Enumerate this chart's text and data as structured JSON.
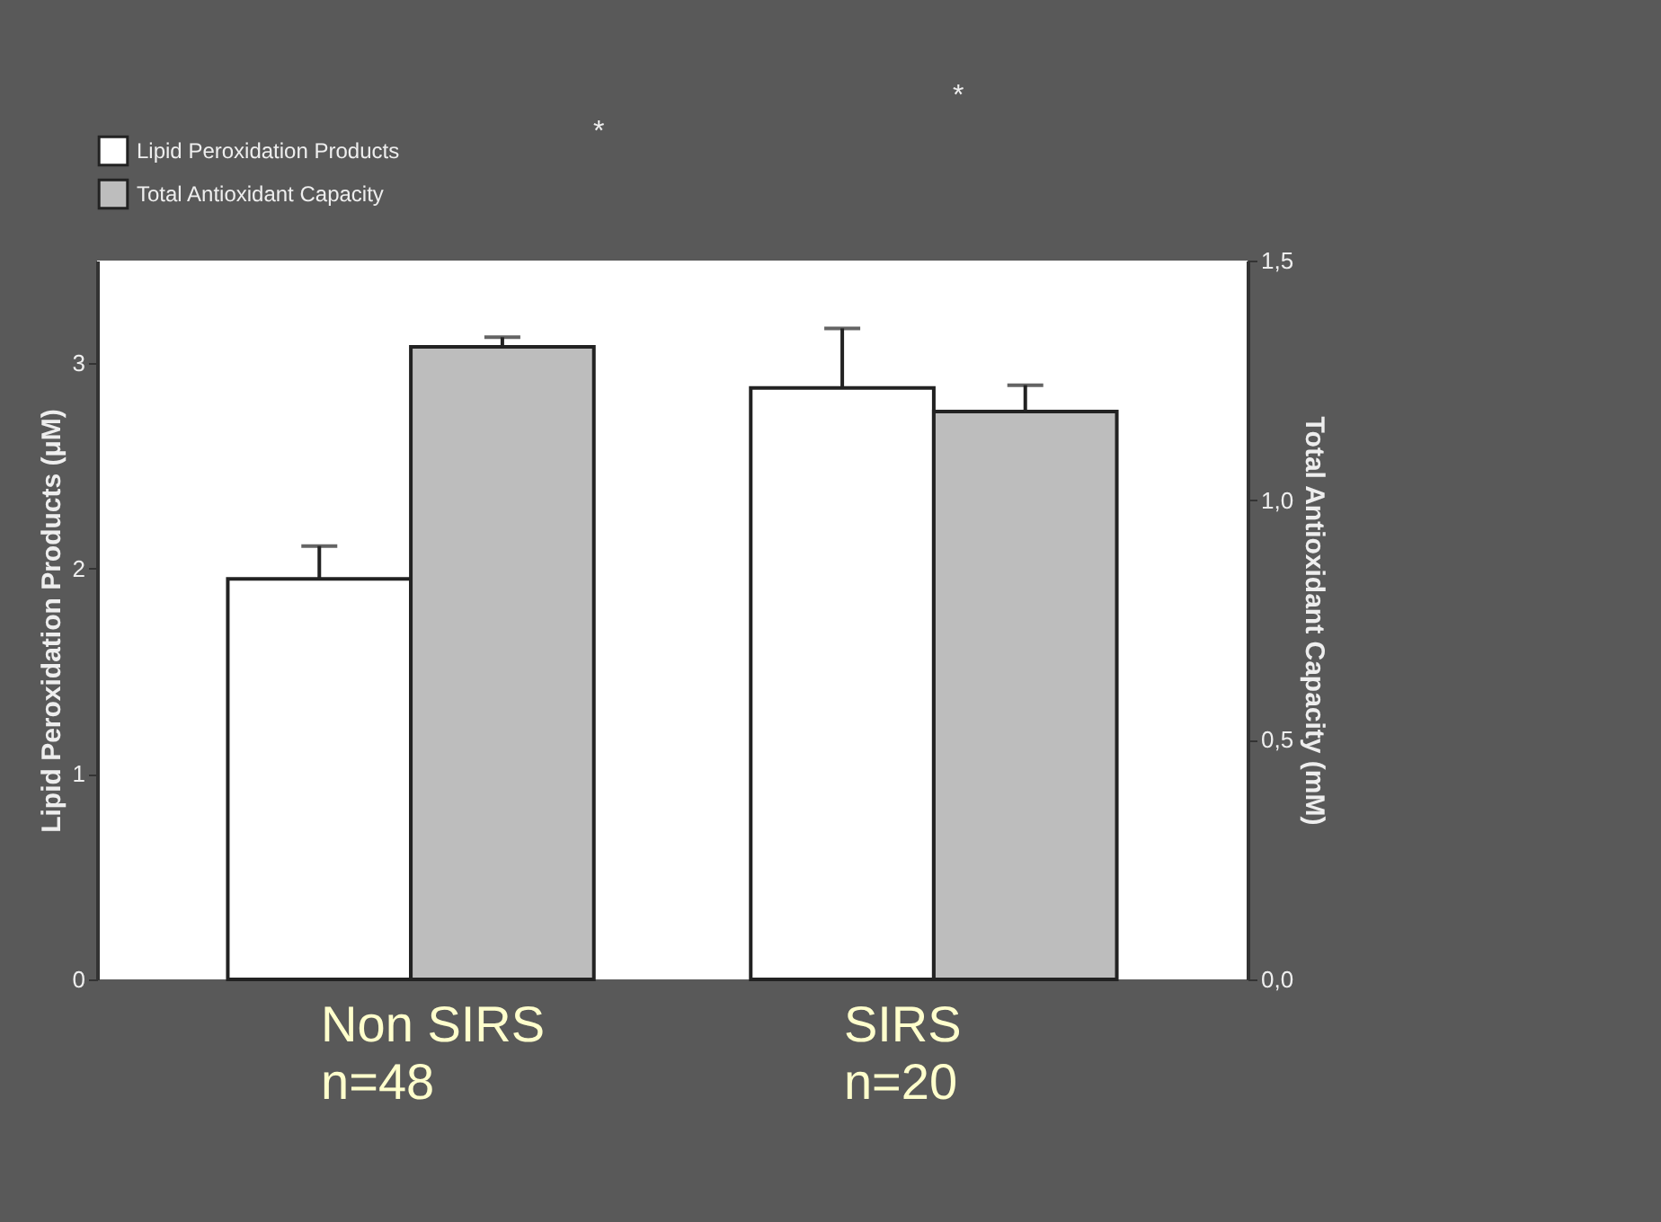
{
  "chart_data": {
    "type": "bar",
    "categories": [
      "Non SIRS\nn=48",
      "SIRS\nn=20"
    ],
    "series": [
      {
        "name": "Lipid Peroxidation Products",
        "color": "#ffffff",
        "values": [
          1.95,
          2.88
        ],
        "errors": [
          [
            1.95,
            2.11
          ],
          [
            2.88,
            3.17
          ]
        ]
      },
      {
        "name": "Total Antioxidant Capacity",
        "color": "#bdbdbd",
        "axis": "y2",
        "values": [
          1.32,
          1.185
        ],
        "errors": [
          [
            1.32,
            1.34
          ],
          [
            1.185,
            1.24
          ]
        ]
      }
    ],
    "ylabel": "Lipid Peroxidation Products (μM)",
    "y2label": "Total Antioxidant Capacity (mM)",
    "ylim": [
      0,
      3.5
    ],
    "yticks": [
      0,
      1,
      2,
      3
    ],
    "y2lim": [
      0,
      1.5
    ],
    "y2ticks": [
      {
        "value": 0,
        "label": "0,0"
      },
      {
        "value": 0.5,
        "label": "0,5"
      },
      {
        "value": 1,
        "label": "1,0"
      },
      {
        "value": 1.5,
        "label": "1,5"
      }
    ],
    "annotations": [
      "*",
      "*"
    ],
    "legend": "top left"
  }
}
